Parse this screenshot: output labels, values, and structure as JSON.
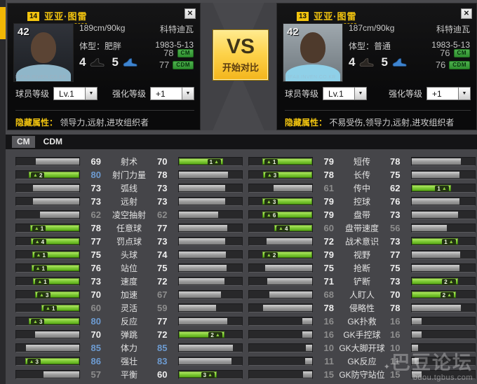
{
  "icons": {
    "dropdown": "▼",
    "boost_up": "▲",
    "close": "✕"
  },
  "colors": {
    "accent_yellow": "#f2c40f",
    "green_fill": "#79c631",
    "value_blue": "#6d9bd1",
    "value_white": "#eeeeee",
    "value_dim": "#8d8d8d",
    "pos_badge_green": "#36a046"
  },
  "left_card": {
    "number": "14",
    "name": "亚亚·图雷",
    "overall": "42",
    "photo_watermark": "FIFA8.INVEN.CO.KR",
    "height_weight": "189cm/90kg",
    "body_type": "体型：肥胖",
    "nationality": "科特迪瓦",
    "birth_date": "1983-5-13",
    "pos1_rating": "78",
    "pos1_label": "CM",
    "pos2_rating": "77",
    "pos2_label": "CDM",
    "boot1": "4",
    "boot2": "5",
    "level_label": "球员等级",
    "level_value": "Lv.1",
    "enhance_label": "强化等级",
    "enhance_value": "+1",
    "hidden_label": "隐藏属性：",
    "hidden_value": "领导力,远射,进攻组织者"
  },
  "right_card": {
    "number": "13",
    "name": "亚亚·图雷",
    "overall": "42",
    "photo_watermark": "FIFA8.INVEN.CO.KR",
    "height_weight": "187cm/90kg",
    "body_type": "体型：普通",
    "nationality": "科特迪瓦",
    "birth_date": "1983-5-13",
    "pos1_rating": "76",
    "pos1_label": "CM",
    "pos2_rating": "76",
    "pos2_label": "CDM",
    "boot1": "4",
    "boot2": "5",
    "level_label": "球员等级",
    "level_value": "Lv.1",
    "enhance_label": "强化等级",
    "enhance_value": "+1",
    "hidden_label": "隐藏属性：",
    "hidden_value": "不易受伤,领导力,远射,进攻组织者"
  },
  "vs_button": {
    "title": "VS",
    "subtitle": "开始对比"
  },
  "tabs": [
    {
      "label": "CM",
      "active": true
    },
    {
      "label": "CDM",
      "active": false
    }
  ],
  "stats_columns": [
    {
      "rows": [
        {
          "label": "射术",
          "left": {
            "value": 69,
            "tone": "normal"
          },
          "right": {
            "value": 70,
            "tone": "normal",
            "boost": 1
          }
        },
        {
          "label": "射门力量",
          "left": {
            "value": 80,
            "tone": "high",
            "boost": 2
          },
          "right": {
            "value": 78,
            "tone": "normal"
          }
        },
        {
          "label": "弧线",
          "left": {
            "value": 73,
            "tone": "normal"
          },
          "right": {
            "value": 73,
            "tone": "normal"
          }
        },
        {
          "label": "远射",
          "left": {
            "value": 73,
            "tone": "normal"
          },
          "right": {
            "value": 73,
            "tone": "normal"
          }
        },
        {
          "label": "凌空抽射",
          "left": {
            "value": 62,
            "tone": "low"
          },
          "right": {
            "value": 62,
            "tone": "low"
          }
        },
        {
          "label": "任意球",
          "left": {
            "value": 78,
            "tone": "normal",
            "boost": 1
          },
          "right": {
            "value": 77,
            "tone": "normal"
          }
        },
        {
          "label": "罚点球",
          "left": {
            "value": 77,
            "tone": "normal",
            "boost": 4
          },
          "right": {
            "value": 73,
            "tone": "normal"
          }
        },
        {
          "label": "头球",
          "left": {
            "value": 75,
            "tone": "normal",
            "boost": 1
          },
          "right": {
            "value": 74,
            "tone": "normal"
          }
        },
        {
          "label": "站位",
          "left": {
            "value": 76,
            "tone": "normal",
            "boost": 1
          },
          "right": {
            "value": 75,
            "tone": "normal"
          }
        },
        {
          "label": "速度",
          "left": {
            "value": 73,
            "tone": "normal",
            "boost": 1
          },
          "right": {
            "value": 72,
            "tone": "normal"
          }
        },
        {
          "label": "加速",
          "left": {
            "value": 70,
            "tone": "normal",
            "boost": 3
          },
          "right": {
            "value": 67,
            "tone": "low"
          }
        },
        {
          "label": "灵活",
          "left": {
            "value": 60,
            "tone": "low",
            "boost": 1
          },
          "right": {
            "value": 59,
            "tone": "low"
          }
        },
        {
          "label": "反应",
          "left": {
            "value": 80,
            "tone": "high",
            "boost": 3
          },
          "right": {
            "value": 77,
            "tone": "normal"
          }
        },
        {
          "label": "弹跳",
          "left": {
            "value": 70,
            "tone": "normal"
          },
          "right": {
            "value": 72,
            "tone": "normal",
            "boost": 2
          }
        },
        {
          "label": "体力",
          "left": {
            "value": 85,
            "tone": "high"
          },
          "right": {
            "value": 85,
            "tone": "high"
          }
        },
        {
          "label": "强壮",
          "left": {
            "value": 86,
            "tone": "high",
            "boost": 3
          },
          "right": {
            "value": 83,
            "tone": "high"
          }
        },
        {
          "label": "平衡",
          "left": {
            "value": 57,
            "tone": "low"
          },
          "right": {
            "value": 60,
            "tone": "normal",
            "boost": 3
          }
        }
      ]
    },
    {
      "rows": [
        {
          "label": "短传",
          "left": {
            "value": 79,
            "tone": "normal",
            "boost": 1
          },
          "right": {
            "value": 78,
            "tone": "normal"
          }
        },
        {
          "label": "长传",
          "left": {
            "value": 78,
            "tone": "normal",
            "boost": 3
          },
          "right": {
            "value": 75,
            "tone": "normal"
          }
        },
        {
          "label": "传中",
          "left": {
            "value": 61,
            "tone": "low"
          },
          "right": {
            "value": 62,
            "tone": "normal",
            "boost": 1
          }
        },
        {
          "label": "控球",
          "left": {
            "value": 79,
            "tone": "normal",
            "boost": 3
          },
          "right": {
            "value": 76,
            "tone": "normal"
          }
        },
        {
          "label": "盘带",
          "left": {
            "value": 79,
            "tone": "normal",
            "boost": 6
          },
          "right": {
            "value": 73,
            "tone": "normal"
          }
        },
        {
          "label": "盘带速度",
          "left": {
            "value": 60,
            "tone": "low",
            "boost": 4
          },
          "right": {
            "value": 56,
            "tone": "low"
          }
        },
        {
          "label": "战术意识",
          "left": {
            "value": 72,
            "tone": "normal"
          },
          "right": {
            "value": 73,
            "tone": "normal",
            "boost": 1
          }
        },
        {
          "label": "视野",
          "left": {
            "value": 79,
            "tone": "normal",
            "boost": 2
          },
          "right": {
            "value": 77,
            "tone": "normal"
          }
        },
        {
          "label": "抢断",
          "left": {
            "value": 75,
            "tone": "normal"
          },
          "right": {
            "value": 75,
            "tone": "normal"
          }
        },
        {
          "label": "铲断",
          "left": {
            "value": 71,
            "tone": "normal"
          },
          "right": {
            "value": 73,
            "tone": "normal",
            "boost": 2
          }
        },
        {
          "label": "人盯人",
          "left": {
            "value": 68,
            "tone": "low"
          },
          "right": {
            "value": 70,
            "tone": "normal",
            "boost": 2
          }
        },
        {
          "label": "侵略性",
          "left": {
            "value": 78,
            "tone": "normal"
          },
          "right": {
            "value": 78,
            "tone": "normal"
          }
        },
        {
          "label": "GK扑救",
          "left": {
            "value": 16,
            "tone": "low"
          },
          "right": {
            "value": 16,
            "tone": "low"
          }
        },
        {
          "label": "GK手控球",
          "left": {
            "value": 16,
            "tone": "low"
          },
          "right": {
            "value": 16,
            "tone": "low"
          }
        },
        {
          "label": "GK大脚开球",
          "left": {
            "value": 10,
            "tone": "low"
          },
          "right": {
            "value": 10,
            "tone": "low"
          }
        },
        {
          "label": "GK反应",
          "left": {
            "value": 11,
            "tone": "low"
          },
          "right": {
            "value": 11,
            "tone": "low"
          }
        },
        {
          "label": "GK防守站位",
          "left": {
            "value": 15,
            "tone": "low"
          },
          "right": {
            "value": 15,
            "tone": "low"
          }
        }
      ]
    }
  ],
  "watermark": {
    "star": "✦",
    "title": "巴豆论坛",
    "url": "bdou.tgbus.com"
  }
}
